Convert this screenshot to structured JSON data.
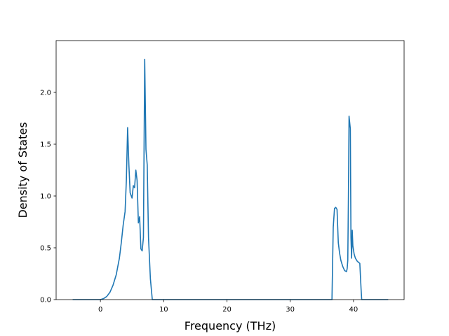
{
  "chart_data": {
    "type": "line",
    "title": "",
    "xlabel": "Frequency (THz)",
    "ylabel": "Density of States",
    "xlim": [
      -7,
      48
    ],
    "ylim": [
      0,
      2.5
    ],
    "xticks": [
      0,
      10,
      20,
      30,
      40
    ],
    "xtick_labels": [
      "0",
      "10",
      "20",
      "30",
      "40"
    ],
    "yticks": [
      0.0,
      0.5,
      1.0,
      1.5,
      2.0
    ],
    "ytick_labels": [
      "0.0",
      "0.5",
      "1.0",
      "1.5",
      "2.0"
    ],
    "grid": false,
    "legend": false,
    "colors": {
      "series": "#1f77b4"
    },
    "series": [
      {
        "x": [
          -4.3,
          0,
          0.5,
          1.0,
          1.5,
          2.0,
          2.5,
          3.0,
          3.3,
          3.6,
          3.9,
          4.1,
          4.3,
          4.5,
          4.7,
          5.0,
          5.2,
          5.4,
          5.6,
          5.8,
          6.0,
          6.2,
          6.4,
          6.6,
          6.8,
          7.0,
          7.2,
          7.4,
          7.6,
          7.9,
          8.2,
          8.5,
          8.8,
          10,
          20,
          30,
          36.6,
          36.8,
          37.0,
          37.2,
          37.4,
          37.6,
          37.8,
          38.0,
          38.3,
          38.6,
          38.9,
          39.0,
          39.1,
          39.2,
          39.3,
          39.5,
          39.6,
          39.7,
          39.8,
          39.9,
          40.1,
          40.3,
          40.6,
          41.0,
          41.2,
          41.3,
          45.4
        ],
        "y": [
          0,
          0,
          0.01,
          0.03,
          0.07,
          0.14,
          0.24,
          0.4,
          0.55,
          0.72,
          0.85,
          1.15,
          1.66,
          1.3,
          1.03,
          0.98,
          1.1,
          1.08,
          1.25,
          1.15,
          0.74,
          0.8,
          0.49,
          0.47,
          0.6,
          2.32,
          1.45,
          1.3,
          0.6,
          0.2,
          0,
          0,
          0,
          0,
          0,
          0,
          0,
          0.7,
          0.88,
          0.89,
          0.87,
          0.55,
          0.45,
          0.38,
          0.32,
          0.28,
          0.27,
          0.3,
          0.38,
          1.0,
          1.77,
          1.65,
          0.6,
          0.4,
          0.67,
          0.52,
          0.44,
          0.4,
          0.37,
          0.35,
          0.1,
          0,
          0
        ]
      }
    ]
  }
}
